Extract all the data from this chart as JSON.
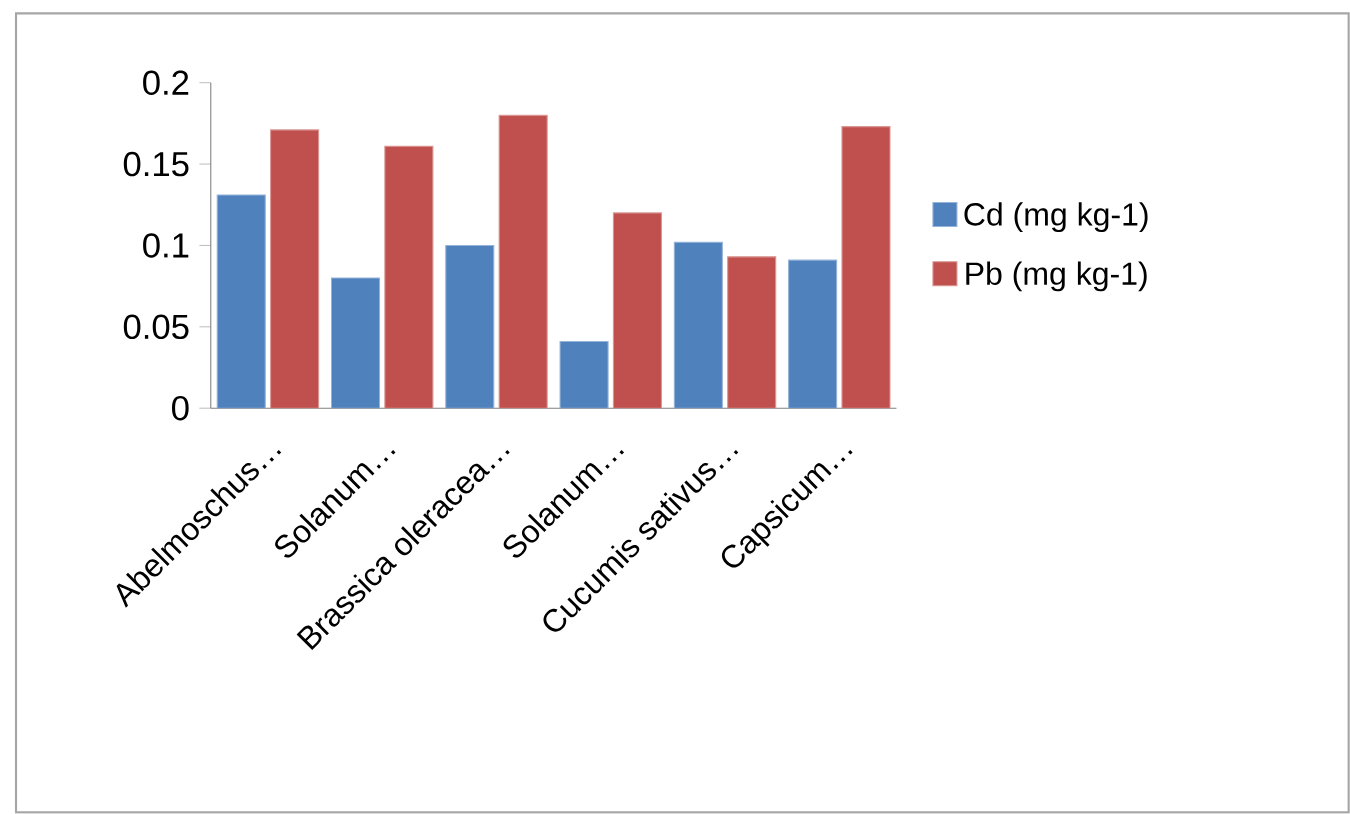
{
  "chart_data": {
    "type": "bar",
    "categories": [
      "Abelmoschus…",
      "Solanum…",
      "Brassica oleracea…",
      "Solanum…",
      "Cucumis sativus…",
      "Capsicum…"
    ],
    "series": [
      {
        "name": "Cd  (mg kg-1)",
        "color": "#4f81bd",
        "values": [
          0.131,
          0.08,
          0.1,
          0.041,
          0.102,
          0.091
        ]
      },
      {
        "name": "Pb (mg kg-1)",
        "color": "#c0504d",
        "values": [
          0.171,
          0.161,
          0.18,
          0.12,
          0.093,
          0.173
        ]
      }
    ],
    "ylim": [
      0,
      0.2
    ],
    "yticks": [
      0,
      0.05,
      0.1,
      0.15,
      0.2
    ],
    "grid": false,
    "legend": "right"
  }
}
